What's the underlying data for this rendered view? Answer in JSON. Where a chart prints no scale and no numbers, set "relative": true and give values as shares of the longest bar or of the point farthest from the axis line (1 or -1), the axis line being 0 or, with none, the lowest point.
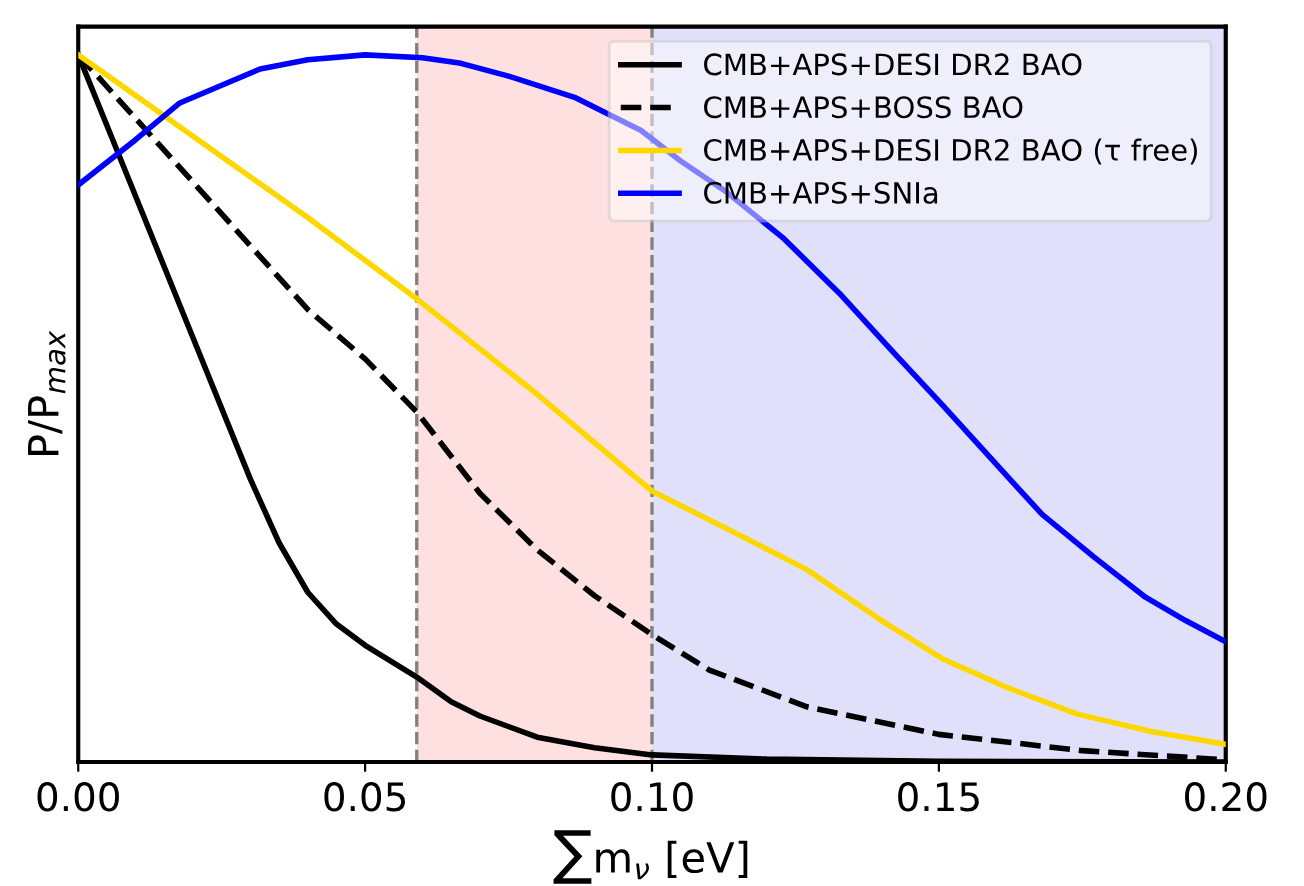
{
  "chart_data": {
    "type": "line",
    "relative": true,
    "xlabel": "∑m$_{ν}$ [eV]",
    "ylabel": "P/P$_{max}$",
    "xlim": [
      0,
      0.2
    ],
    "xticks": [
      {
        "value": 0,
        "label": "0.00"
      },
      {
        "value": 0.05,
        "label": "0.05"
      },
      {
        "value": 0.1,
        "label": "0.10"
      },
      {
        "value": 0.15,
        "label": "0.15"
      },
      {
        "value": 0.2,
        "label": "0.20"
      }
    ],
    "tick_labels": "x",
    "grid": false,
    "legend": "top right",
    "marker": "none",
    "bands": [
      {
        "axis": "x",
        "from": 0.059,
        "to": 0.1,
        "color": "#ffe0e0"
      },
      {
        "axis": "x",
        "from": 0.1,
        "to": 0.2,
        "color": "#e0e0fa"
      }
    ],
    "ref_lines": [
      {
        "axis": "x",
        "value": 0.059,
        "color": "#808080",
        "line_style": "dashed"
      },
      {
        "axis": "x",
        "value": 0.1,
        "color": "#808080",
        "line_style": "dashed"
      }
    ],
    "series": [
      {
        "name": "CMB+APS+DESI DR2 BAO",
        "color": "#000000",
        "line_style": "solid",
        "x": [
          0,
          0.005,
          0.01,
          0.02,
          0.03,
          0.035,
          0.04,
          0.045,
          0.05,
          0.059,
          0.065,
          0.07,
          0.08,
          0.09,
          0.1,
          0.12,
          0.15,
          0.2
        ],
        "values": [
          1.0,
          0.9,
          0.8,
          0.6,
          0.4,
          0.31,
          0.24,
          0.195,
          0.165,
          0.12,
          0.085,
          0.065,
          0.035,
          0.02,
          0.01,
          0.004,
          0.001,
          0
        ]
      },
      {
        "name": "CMB+APS+BOSS BAO",
        "color": "#000000",
        "line_style": "dashed",
        "x": [
          0,
          0.01,
          0.02,
          0.03,
          0.04,
          0.05,
          0.059,
          0.07,
          0.08,
          0.09,
          0.1,
          0.11,
          0.127,
          0.15,
          0.175,
          0.2
        ],
        "values": [
          1.0,
          0.91,
          0.82,
          0.73,
          0.64,
          0.57,
          0.495,
          0.38,
          0.3,
          0.235,
          0.18,
          0.13,
          0.078,
          0.039,
          0.016,
          0.003
        ]
      },
      {
        "name": "CMB+APS+DESI DR2 BAO (τ free)",
        "color": "#ffd700",
        "line_style": "solid",
        "x": [
          0,
          0.02,
          0.04,
          0.059,
          0.08,
          0.1,
          0.113,
          0.127,
          0.14,
          0.1506,
          0.162,
          0.174,
          0.187,
          0.2
        ],
        "values": [
          1.0,
          0.885,
          0.77,
          0.655,
          0.52,
          0.383,
          0.33,
          0.272,
          0.2,
          0.146,
          0.105,
          0.068,
          0.043,
          0.025
        ]
      },
      {
        "name": "CMB+APS+SNIa",
        "color": "#0000ff",
        "line_style": "solid",
        "x": [
          0,
          0.01,
          0.0177,
          0.0317,
          0.04,
          0.05,
          0.06,
          0.0667,
          0.075,
          0.0865,
          0.0981,
          0.105,
          0.113,
          0.123,
          0.133,
          0.142,
          0.1506,
          0.159,
          0.168,
          0.177,
          0.186,
          0.193,
          0.2
        ],
        "values": [
          0.816,
          0.88,
          0.932,
          0.98,
          0.993,
          1.0,
          0.996,
          0.988,
          0.97,
          0.94,
          0.893,
          0.85,
          0.806,
          0.74,
          0.66,
          0.58,
          0.505,
          0.43,
          0.35,
          0.29,
          0.233,
          0.2,
          0.17
        ]
      }
    ]
  }
}
